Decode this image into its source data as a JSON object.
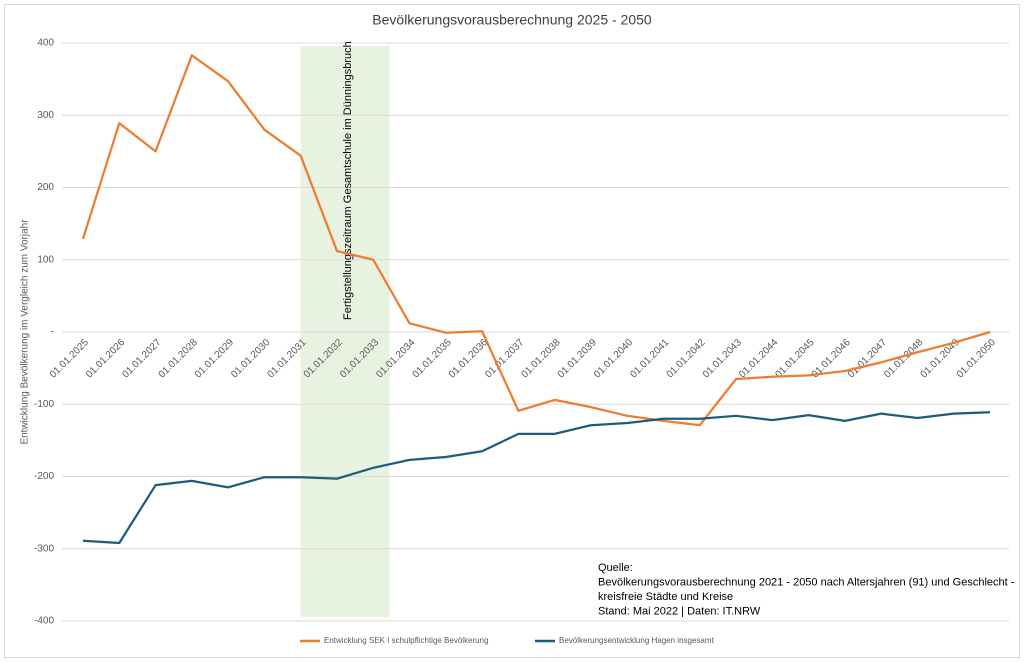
{
  "chart_data": {
    "type": "line",
    "title": "Bevölkerungsvorausberechnung 2025 - 2050",
    "y_label": "Entwicklung Bevölkerung im Vergleich zum Vorjahr",
    "categories": [
      "01.01.2025",
      "01.01.2026",
      "01.01.2027",
      "01.01.2028",
      "01.01.2029",
      "01.01.2030",
      "01.01.2031",
      "01.01.2032",
      "01.01.2033",
      "01.01.2034",
      "01.01.2035",
      "01.01.2036",
      "01.01.2037",
      "01.01.2038",
      "01.01.2039",
      "01.01.2040",
      "01.01.2041",
      "01.01.2042",
      "01.01.2043",
      "01.01.2044",
      "01.01.2045",
      "01.01.2046",
      "01.01.2047",
      "01.01.2048",
      "01.01.2049",
      "01.01.2050"
    ],
    "series": [
      {
        "name": "Entwicklung SEK I schulpflichtige Bevölkerung",
        "color": "#ed7d31",
        "values": [
          129,
          289,
          250,
          383,
          347,
          280,
          244,
          112,
          100,
          12,
          -1,
          1,
          -109,
          -94,
          -104,
          -116,
          -123,
          -129,
          -65,
          -62,
          -60,
          -54,
          -42,
          -28,
          -15,
          0
        ]
      },
      {
        "name": "Bevölkerungsentwicklung Hagen insgesamt",
        "color": "#1f5c7a",
        "values": [
          -289,
          -292,
          -212,
          -206,
          -215,
          -201,
          -201,
          -203,
          -188,
          -177,
          -173,
          -165,
          -141,
          -141,
          -129,
          -126,
          -120,
          -120,
          -116,
          -122,
          -115,
          -123,
          -113,
          -119,
          -113,
          -111
        ]
      }
    ],
    "ylim": [
      -400,
      400
    ],
    "yticks": [
      -400,
      -300,
      -200,
      -100,
      {
        "value": 0,
        "label": "-"
      },
      100,
      200,
      300,
      400
    ],
    "grid": true,
    "annotation": "Fertigstellungszeitraum Gesamtschule im Dünningsbruch",
    "source": [
      "Quelle:",
      "Bevölkerungsvorausberechnung 2021 - 2050 nach Altersjahren (91) und Geschlecht -",
      "kreisfreie Städte und Kreise",
      "Stand: Mai 2022 | Daten: IT.NRW"
    ],
    "legend": "bottom"
  }
}
